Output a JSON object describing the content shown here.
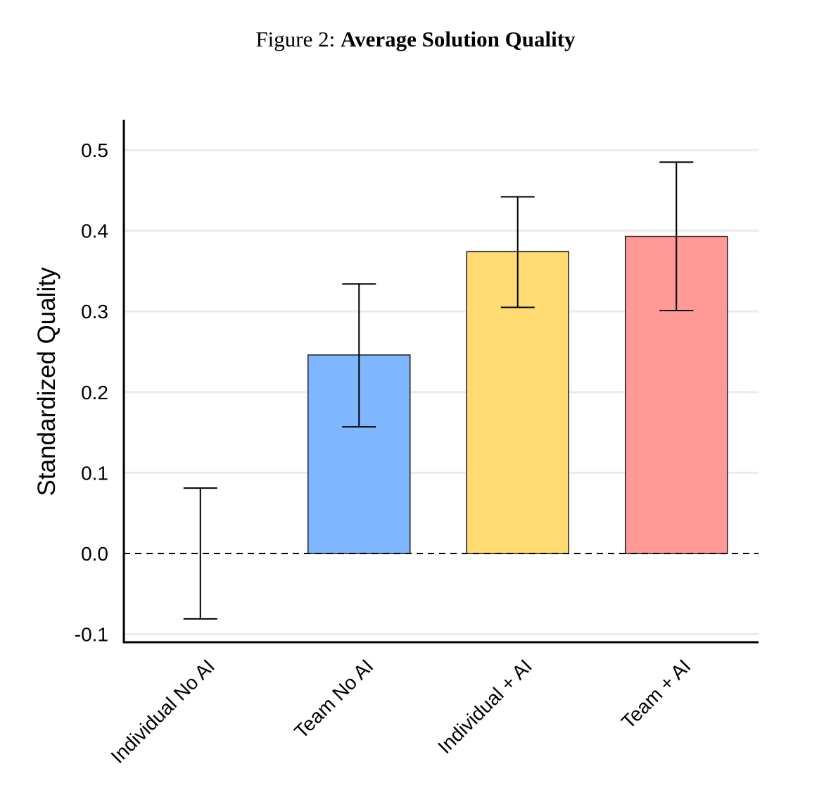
{
  "caption": {
    "prefix": "Figure 2:",
    "title": "Average Solution Quality"
  },
  "chart_data": {
    "type": "bar",
    "title": "Average Solution Quality",
    "xlabel": "",
    "ylabel": "Standardized Quality",
    "ylim": [
      -0.11,
      0.53
    ],
    "yticks": [
      -0.1,
      0.0,
      0.1,
      0.2,
      0.3,
      0.4,
      0.5
    ],
    "ytick_labels": [
      "-0.1",
      "0.0",
      "0.1",
      "0.2",
      "0.3",
      "0.4",
      "0.5"
    ],
    "grid": "horizontal",
    "reference_line": {
      "y": 0.0,
      "style": "dashed"
    },
    "categories": [
      "Individual No AI",
      "Team No AI",
      "Individual + AI",
      "Team + AI"
    ],
    "values": [
      0.0,
      0.246,
      0.374,
      0.393
    ],
    "error_low": [
      -0.081,
      0.157,
      0.305,
      0.301
    ],
    "error_high": [
      0.081,
      0.334,
      0.442,
      0.485
    ],
    "colors": [
      "#ffffff",
      "#7eb6ff",
      "#ffdb72",
      "#ff9a96"
    ]
  }
}
